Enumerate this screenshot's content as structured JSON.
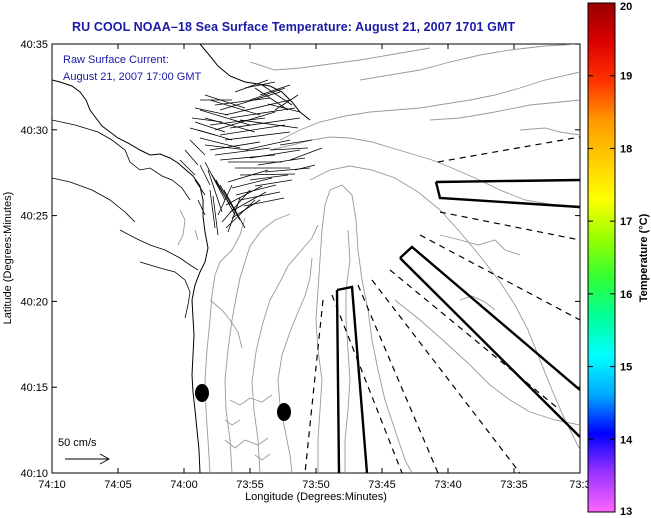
{
  "title": "RU COOL  NOAA–18  Sea Surface Temperature:  August 21, 2007 1701 GMT",
  "map": {
    "annotation_line1": "Raw Surface Current:",
    "annotation_line2": "August 21, 2007 17:00 GMT",
    "scale_label": "50 cm/s",
    "xlabel": "Longitude (Degrees:Minutes)",
    "ylabel": "Latitude (Degrees:Minutes)",
    "x_ticks": [
      "74:10",
      "74:05",
      "74:00",
      "73:55",
      "73:50",
      "73:45",
      "73:40",
      "73:35",
      "73:3"
    ],
    "y_ticks": [
      "40:35",
      "40:30",
      "40:25",
      "40:20",
      "40:15",
      "40:10"
    ]
  },
  "colorbar": {
    "label": "Temperature (°C)",
    "ticks": [
      "20",
      "19",
      "18",
      "17",
      "16",
      "15",
      "14",
      "13"
    ],
    "min": 13,
    "max": 20,
    "colors": [
      "#ff66ff",
      "#9933ff",
      "#0000ff",
      "#00aaff",
      "#00ffff",
      "#00ff99",
      "#33ff33",
      "#99ff00",
      "#ffff00",
      "#ffcc00",
      "#ff9900",
      "#ff3300",
      "#dd0000",
      "#990000"
    ]
  }
}
